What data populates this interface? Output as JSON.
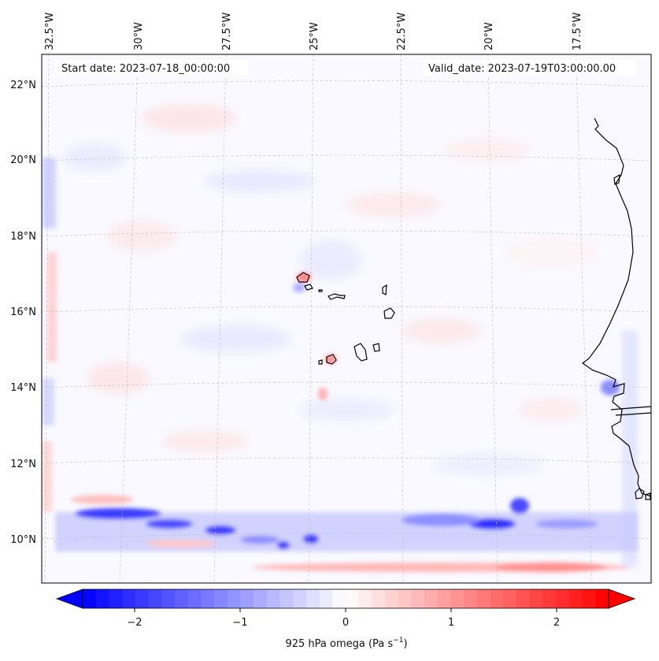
{
  "map": {
    "start_date_label": "Start date: 2023-07-18_00:00:00",
    "valid_date_label": "Valid_date: 2023-07-19T03:00:00.00",
    "longitude_ticks": [
      "32.5°W",
      "30°W",
      "27.5°W",
      "25°W",
      "22.5°W",
      "20°W",
      "17.5°W"
    ],
    "latitude_ticks": [
      "22°N",
      "20°N",
      "18°N",
      "16°N",
      "14°N",
      "12°N",
      "10°N"
    ],
    "field_variable": "925 hPa omega",
    "gridlines": true
  },
  "colorbar": {
    "label": "925 hPa omega (Pa s",
    "label_exponent": "−1",
    "label_close": ")",
    "ticks": [
      "−2",
      "−1",
      "0",
      "1",
      "2"
    ],
    "tick_values": [
      -2,
      -1,
      0,
      1,
      2
    ],
    "range": [
      -2.75,
      2.75
    ],
    "colormap": "bwr",
    "color_negative": "#0000ff",
    "color_zero": "#ffffff",
    "color_positive": "#ff0000"
  }
}
